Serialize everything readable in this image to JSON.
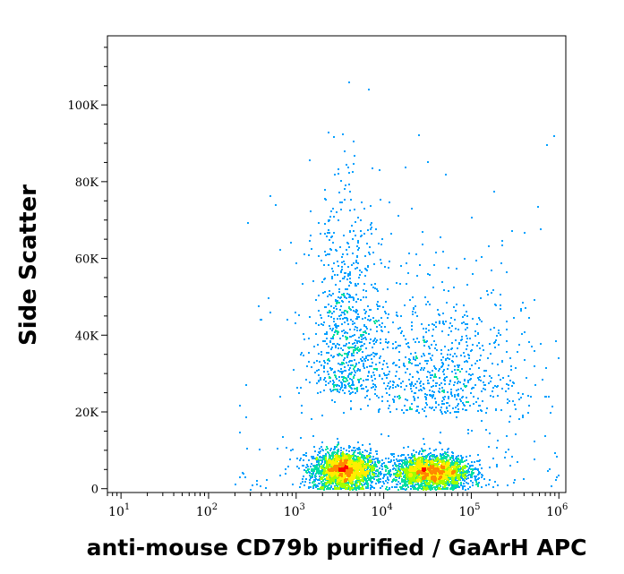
{
  "chart_data": {
    "type": "scatter",
    "title": "",
    "xlabel": "anti-mouse CD79b purified / GaArH APC",
    "ylabel": "Side Scatter",
    "x_scale": "log",
    "y_scale": "linear",
    "xlim": [
      7,
      1200000
    ],
    "ylim": [
      -1000,
      118000
    ],
    "x_ticks": [
      {
        "value": 10,
        "base": "10",
        "exp": "1"
      },
      {
        "value": 100,
        "base": "10",
        "exp": "2"
      },
      {
        "value": 1000,
        "base": "10",
        "exp": "3"
      },
      {
        "value": 10000,
        "base": "10",
        "exp": "4"
      },
      {
        "value": 100000,
        "base": "10",
        "exp": "5"
      },
      {
        "value": 1000000,
        "base": "10",
        "exp": "6"
      }
    ],
    "y_ticks": [
      {
        "value": 0,
        "label": "0"
      },
      {
        "value": 20000,
        "label": "20K"
      },
      {
        "value": 40000,
        "label": "40K"
      },
      {
        "value": 60000,
        "label": "60K"
      },
      {
        "value": 80000,
        "label": "80K"
      },
      {
        "value": 100000,
        "label": "100K"
      }
    ],
    "populations": [
      {
        "x_center": 3500,
        "y_center": 5000,
        "x_spread_decades": 0.18,
        "y_spread": 2500,
        "density": "high"
      },
      {
        "x_center": 35000,
        "y_center": 4500,
        "x_spread_decades": 0.22,
        "y_spread": 2200,
        "density": "high"
      },
      {
        "x_center": 3800,
        "y_center": 25000,
        "x_spread_decades": 0.2,
        "y_spread": 30000,
        "density": "low"
      },
      {
        "x_center": 40000,
        "y_center": 20000,
        "x_spread_decades": 0.5,
        "y_spread": 20000,
        "density": "low"
      }
    ],
    "color_scale": [
      "#0000cc",
      "#00a0ff",
      "#00e0a0",
      "#a0ff00",
      "#ffee00",
      "#ff8800",
      "#ff0000"
    ],
    "grid": false
  }
}
